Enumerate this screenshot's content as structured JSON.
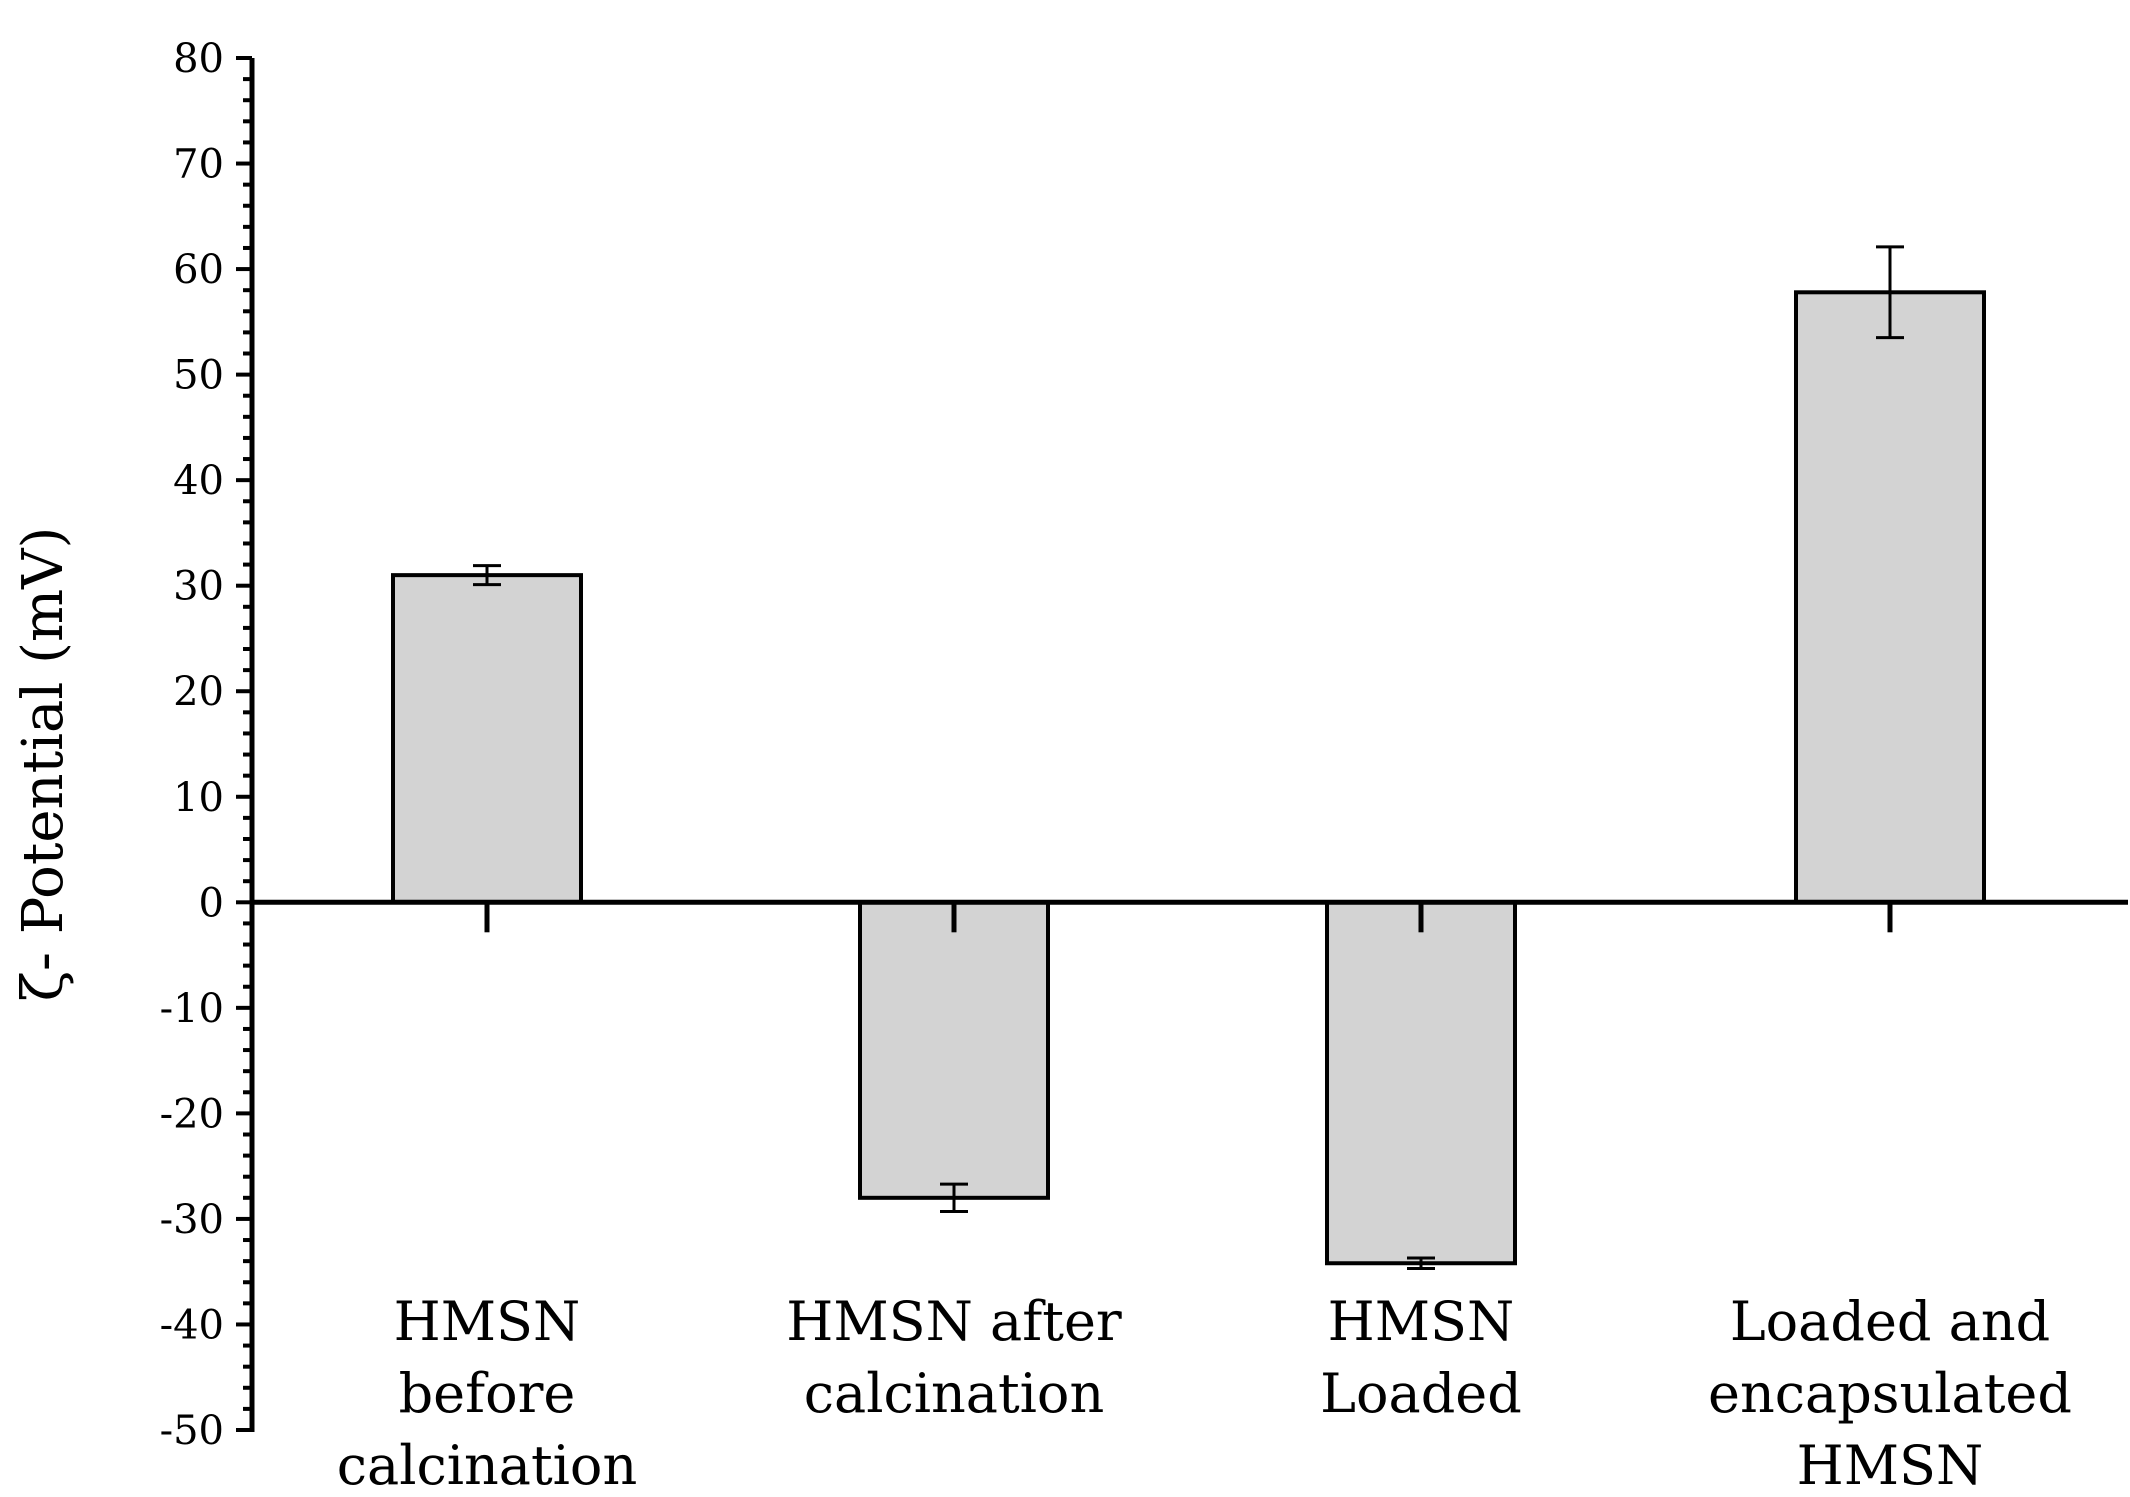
{
  "chart_data": {
    "type": "bar",
    "title": "",
    "xlabel": "",
    "ylabel": "ζ- Potential (mV)",
    "ylim": [
      -50,
      80
    ],
    "yticks": [
      -50,
      -40,
      -30,
      -20,
      -10,
      0,
      10,
      20,
      30,
      40,
      50,
      60,
      70,
      80
    ],
    "ytick_labels": [
      "-50",
      "-40",
      "-30",
      "-20",
      "-10",
      "0",
      "10",
      "20",
      "30",
      "40",
      "50",
      "60",
      "70",
      "80"
    ],
    "y_minor_step": 2,
    "grid": false,
    "legend": "none",
    "bar_color": "#d3d3d3",
    "edge_color": "#000000",
    "categories": [
      [
        "HMSN",
        "before",
        "calcination"
      ],
      [
        "HMSN after",
        "calcination"
      ],
      [
        "HMSN",
        "Loaded"
      ],
      [
        "Loaded and",
        "encapsulated",
        "HMSN"
      ]
    ],
    "values": [
      31,
      -28,
      -34.2,
      57.8
    ],
    "errors": [
      0.9,
      1.3,
      0.5,
      4.3
    ]
  }
}
